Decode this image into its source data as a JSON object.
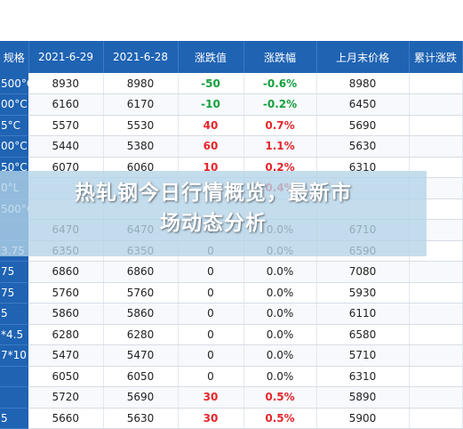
{
  "headline": {
    "line1": "热轧钢今日行情概览，最新市",
    "line2": "场动态分析"
  },
  "table": {
    "headers": [
      "规格",
      "2021-6-29",
      "2021-6-28",
      "涨跌值",
      "涨跌幅",
      "上月末价格",
      "累计涨跌"
    ],
    "rows": [
      {
        "spec": "500°C",
        "d29": "8930",
        "d28": "8980",
        "chg": "-50",
        "pct": "-0.6%",
        "last": "8980",
        "dir": "down"
      },
      {
        "spec": "00°C",
        "d29": "6160",
        "d28": "6170",
        "chg": "-10",
        "pct": "-0.2%",
        "last": "6450",
        "dir": "down"
      },
      {
        "spec": "5°C",
        "d29": "5570",
        "d28": "5530",
        "chg": "40",
        "pct": "0.7%",
        "last": "5690",
        "dir": "up"
      },
      {
        "spec": "00°C",
        "d29": "5440",
        "d28": "5380",
        "chg": "60",
        "pct": "1.1%",
        "last": "5630",
        "dir": "up"
      },
      {
        "spec": "50°C",
        "d29": "6070",
        "d28": "6060",
        "chg": "10",
        "pct": "0.2%",
        "last": "6310",
        "dir": "up"
      },
      {
        "spec": "0°L",
        "d29": "",
        "d28": "",
        "chg": "",
        "pct": "0.4%",
        "last": "",
        "dir": "up"
      },
      {
        "spec": "500°C",
        "d29": "",
        "d28": "",
        "chg": "",
        "pct": "",
        "last": "",
        "dir": "flat"
      },
      {
        "spec": "",
        "d29": "6470",
        "d28": "6470",
        "chg": "0",
        "pct": "0.0%",
        "last": "6710",
        "dir": "flat"
      },
      {
        "spec": "3.75",
        "d29": "6350",
        "d28": "6350",
        "chg": "0",
        "pct": "0.0%",
        "last": "6590",
        "dir": "flat"
      },
      {
        "spec": "75",
        "d29": "6860",
        "d28": "6860",
        "chg": "0",
        "pct": "0.0%",
        "last": "7080",
        "dir": "flat"
      },
      {
        "spec": "75",
        "d29": "5760",
        "d28": "5760",
        "chg": "0",
        "pct": "0.0%",
        "last": "5930",
        "dir": "flat"
      },
      {
        "spec": "5",
        "d29": "5860",
        "d28": "5860",
        "chg": "0",
        "pct": "0.0%",
        "last": "6110",
        "dir": "flat"
      },
      {
        "spec": "*4.5",
        "d29": "6280",
        "d28": "6280",
        "chg": "0",
        "pct": "0.0%",
        "last": "6580",
        "dir": "flat"
      },
      {
        "spec": "7*10",
        "d29": "5470",
        "d28": "5470",
        "chg": "0",
        "pct": "0.0%",
        "last": "5710",
        "dir": "flat"
      },
      {
        "spec": "",
        "d29": "6050",
        "d28": "6050",
        "chg": "0",
        "pct": "0.0%",
        "last": "6310",
        "dir": "flat"
      },
      {
        "spec": "",
        "d29": "5720",
        "d28": "5690",
        "chg": "30",
        "pct": "0.5%",
        "last": "5890",
        "dir": "up"
      },
      {
        "spec": "5",
        "d29": "5660",
        "d28": "5630",
        "chg": "30",
        "pct": "0.5%",
        "last": "5900",
        "dir": "up"
      }
    ]
  }
}
